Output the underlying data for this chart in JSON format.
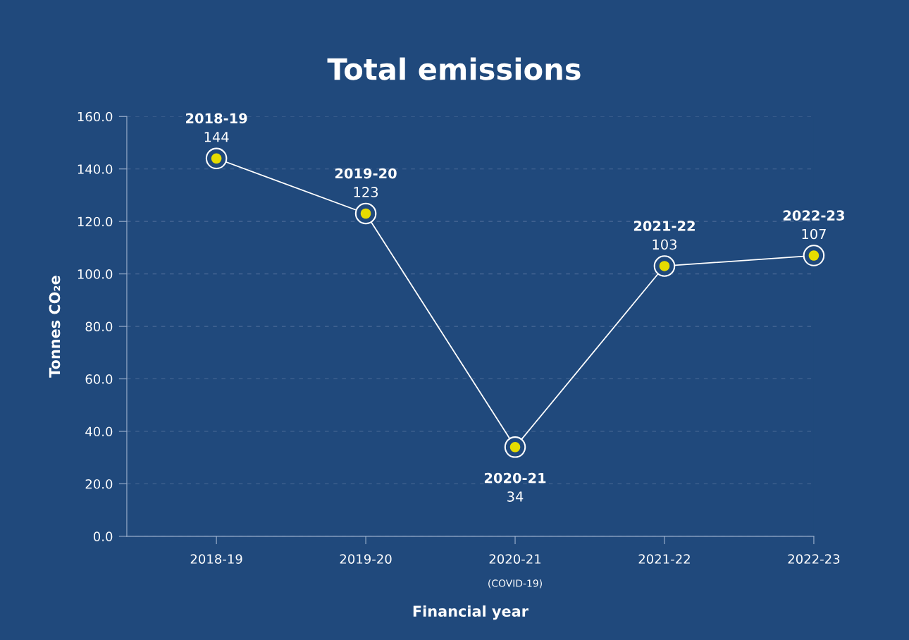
{
  "chart_data": {
    "type": "line",
    "title": "Total emissions",
    "xlabel": "Financial year",
    "ylabel": "Tonnes CO₂e",
    "categories": [
      "2018-19",
      "2019-20",
      "2020-21",
      "2021-22",
      "2022-23"
    ],
    "series": [
      {
        "color": "#ffffff",
        "values": [
          144,
          123,
          34,
          103,
          107
        ]
      }
    ],
    "data_labels": true,
    "marker": "circle",
    "line_style": "solid",
    "grid": "y",
    "ylim": [
      0,
      160
    ],
    "yticks": [
      {
        "value": 0,
        "label": "0.0"
      },
      {
        "value": 20,
        "label": "20.0"
      },
      {
        "value": 40,
        "label": "40.0"
      },
      {
        "value": 60,
        "label": "60.0"
      },
      {
        "value": 80,
        "label": "80.0"
      },
      {
        "value": 100,
        "label": "100.0"
      },
      {
        "value": 120,
        "label": "120.0"
      },
      {
        "value": 140,
        "label": "140.0"
      },
      {
        "value": 160,
        "label": "160.0"
      }
    ],
    "annotations": [
      "(COVID-19)"
    ]
  }
}
